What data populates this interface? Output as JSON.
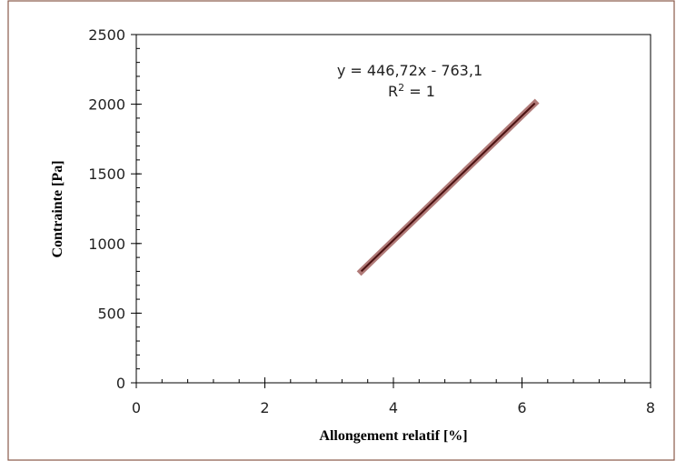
{
  "chart_data": {
    "type": "scatter",
    "xlabel": "Allongement relatif [%]",
    "ylabel": "Contrainte [Pa]",
    "xlim": [
      0,
      8
    ],
    "ylim": [
      0,
      2500
    ],
    "x_ticks": [
      0,
      2,
      4,
      6,
      8
    ],
    "y_ticks": [
      0,
      500,
      1000,
      1500,
      2000,
      2500
    ],
    "x_tick_labels": [
      "0",
      "2",
      "4",
      "6",
      "8"
    ],
    "y_tick_labels": [
      "0",
      "500",
      "1000",
      "1500",
      "2000",
      "2500"
    ],
    "x_minor_step": 0.4,
    "y_minor_step": 100,
    "grid": false,
    "legend": "none",
    "series": [
      {
        "x": [
          3.5,
          3.8,
          4.1,
          4.4,
          4.7,
          5.0,
          5.3,
          5.6,
          5.9,
          6.2
        ],
        "y": [
          800,
          934,
          1068,
          1202,
          1336,
          1471,
          1605,
          1739,
          1873,
          2007
        ],
        "color": "#b07a78"
      }
    ],
    "trendline": {
      "type": "linear",
      "slope": 446.72,
      "intercept": -763.1,
      "x_range": [
        3.5,
        6.2
      ],
      "color": "#4a1010",
      "equation_text": "y = 446,72x - 763,1",
      "r2_label": "R",
      "r2_sup": "2",
      "r2_value": " = 1"
    },
    "colors": {
      "frame": "#8a5a4a",
      "axis": "#000000"
    }
  }
}
